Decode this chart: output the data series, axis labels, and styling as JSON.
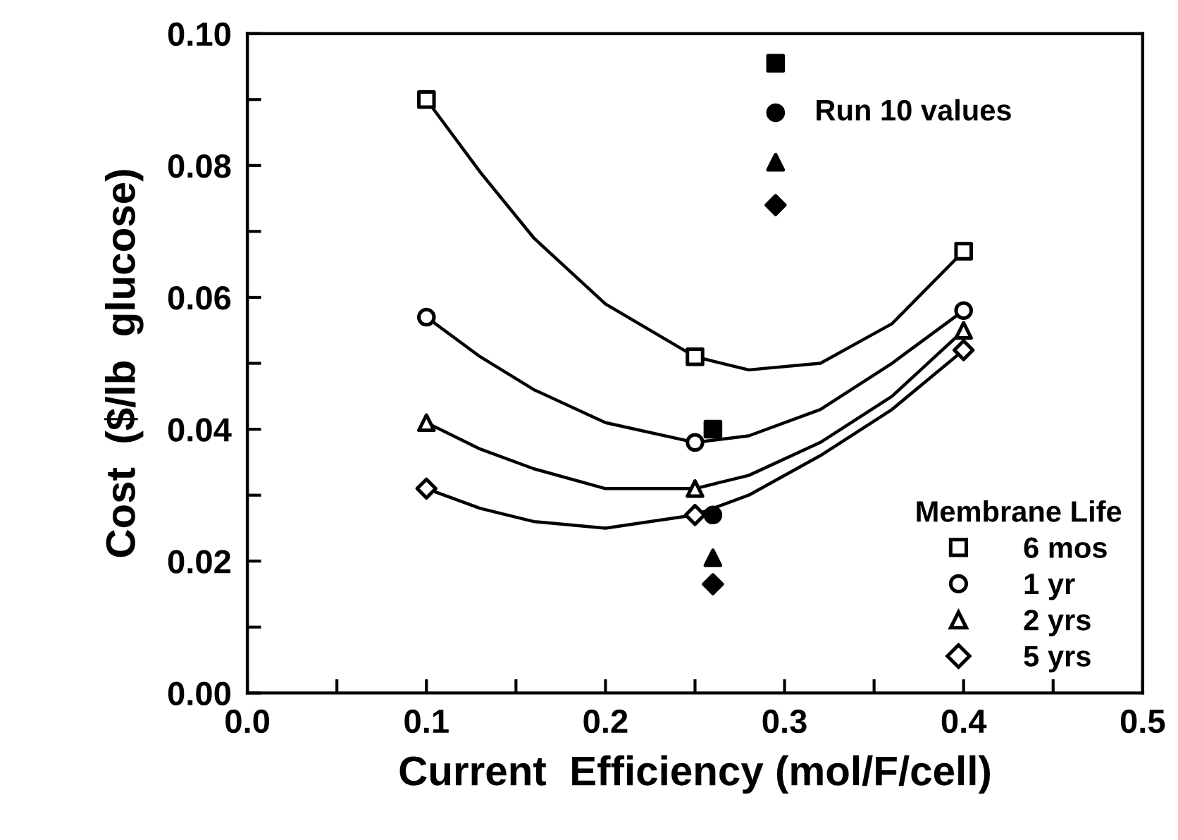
{
  "chart_data": {
    "type": "scatter",
    "xlabel": "Current  Efficiency (mol/F/cell)",
    "ylabel": "Cost  ($/lb  glucose)",
    "legend_title": "Membrane Life",
    "legend": "bottom right",
    "grid": false,
    "xlim": [
      0,
      0.5
    ],
    "ylim": [
      0,
      0.1
    ],
    "xticks": [
      {
        "value": 0,
        "label": "0.0"
      },
      {
        "value": 0.05,
        "label": null
      },
      0.1,
      {
        "value": 0.15,
        "label": null
      },
      0.2,
      {
        "value": 0.25,
        "label": null
      },
      0.3,
      {
        "value": 0.35,
        "label": null
      },
      0.4,
      {
        "value": 0.45,
        "label": null
      },
      0.5
    ],
    "yticks": [
      {
        "value": 0,
        "label": "0.00"
      },
      {
        "value": 0.01,
        "label": null
      },
      {
        "value": 0.02,
        "label": "0.02"
      },
      {
        "value": 0.03,
        "label": null
      },
      {
        "value": 0.04,
        "label": "0.04"
      },
      {
        "value": 0.05,
        "label": null
      },
      {
        "value": 0.06,
        "label": "0.06"
      },
      {
        "value": 0.07,
        "label": null
      },
      {
        "value": 0.08,
        "label": "0.08"
      },
      {
        "value": 0.09,
        "label": null
      },
      {
        "value": 0.1,
        "label": "0.10"
      }
    ],
    "annotations": [
      {
        "text": "Run 10 values",
        "x": 0.295,
        "y": 0.088
      }
    ],
    "series": [
      {
        "type": "line",
        "color": "#000000",
        "marker": "none",
        "line_style": "solid",
        "x": [
          0.1,
          0.13,
          0.16,
          0.2,
          0.25,
          0.28,
          0.32,
          0.36,
          0.4
        ],
        "values": [
          0.09,
          0.079,
          0.069,
          0.059,
          0.051,
          0.049,
          0.05,
          0.056,
          0.067
        ]
      },
      {
        "type": "line",
        "color": "#000000",
        "marker": "none",
        "line_style": "solid",
        "x": [
          0.1,
          0.13,
          0.16,
          0.2,
          0.25,
          0.28,
          0.32,
          0.36,
          0.4
        ],
        "values": [
          0.057,
          0.051,
          0.046,
          0.041,
          0.038,
          0.039,
          0.043,
          0.05,
          0.058
        ]
      },
      {
        "type": "line",
        "color": "#000000",
        "marker": "none",
        "line_style": "solid",
        "x": [
          0.1,
          0.13,
          0.16,
          0.2,
          0.25,
          0.28,
          0.32,
          0.36,
          0.4
        ],
        "values": [
          0.041,
          0.037,
          0.034,
          0.031,
          0.031,
          0.033,
          0.038,
          0.045,
          0.055
        ]
      },
      {
        "type": "line",
        "color": "#000000",
        "marker": "none",
        "line_style": "solid",
        "x": [
          0.1,
          0.13,
          0.16,
          0.2,
          0.25,
          0.28,
          0.32,
          0.36,
          0.4
        ],
        "values": [
          0.031,
          0.028,
          0.026,
          0.025,
          0.027,
          0.03,
          0.036,
          0.043,
          0.052
        ]
      },
      {
        "name": "6 mos",
        "color": "#000000",
        "marker": "square",
        "x": [
          0.1,
          0.25,
          0.4
        ],
        "values": [
          0.09,
          0.051,
          0.067
        ]
      },
      {
        "name": "1 yr",
        "color": "#000000",
        "marker": "circle",
        "x": [
          0.1,
          0.25,
          0.4
        ],
        "values": [
          0.057,
          0.038,
          0.058
        ]
      },
      {
        "name": "2 yrs",
        "color": "#000000",
        "marker": "triangle",
        "x": [
          0.1,
          0.25,
          0.4
        ],
        "values": [
          0.041,
          0.031,
          0.055
        ]
      },
      {
        "name": "5 yrs",
        "color": "#000000",
        "marker": "diamond",
        "x": [
          0.1,
          0.25,
          0.4
        ],
        "values": [
          0.031,
          0.027,
          0.052
        ]
      },
      {
        "color": "#000000",
        "marker": "square",
        "x": [
          0.26,
          0.295
        ],
        "values": [
          0.04,
          0.0955
        ]
      },
      {
        "color": "#000000",
        "marker": "circle",
        "x": [
          0.26,
          0.295
        ],
        "values": [
          0.027,
          0.088
        ]
      },
      {
        "color": "#000000",
        "marker": "triangle",
        "x": [
          0.26,
          0.295
        ],
        "values": [
          0.0205,
          0.0805
        ]
      },
      {
        "color": "#000000",
        "marker": "diamond",
        "x": [
          0.26,
          0.295
        ],
        "values": [
          0.0165,
          0.074
        ]
      }
    ]
  }
}
